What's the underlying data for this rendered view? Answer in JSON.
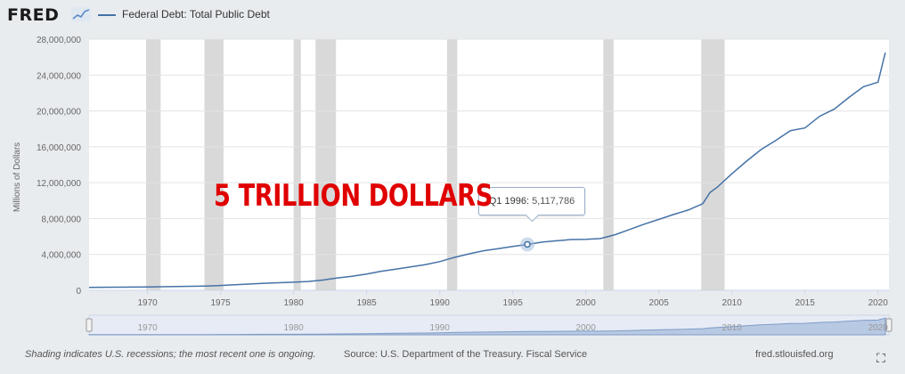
{
  "header": {
    "logo": "FRED",
    "series_title": "Federal Debt: Total Public Debt"
  },
  "annotation": "5 TRILLION DOLLARS",
  "tooltip": {
    "label": "Q1 1996:",
    "value": "5,117,786"
  },
  "footer": {
    "note": "Shading indicates U.S. recessions; the most recent one is ongoing.",
    "source": "Source: U.S. Department of the Treasury. Fiscal Service",
    "url": "fred.stlouisfed.org",
    "expand_icon": "expand-icon"
  },
  "colors": {
    "line": "#4572a7",
    "recession": "#d9d9d9",
    "background": "#ffffff",
    "annotation": "#e00000"
  },
  "chart_data": {
    "type": "line",
    "title": "",
    "xlabel": "",
    "ylabel": "Millions of Dollars",
    "xlim": [
      1966,
      2020.75
    ],
    "ylim": [
      0,
      28000000
    ],
    "x_ticks": [
      "1970",
      "1975",
      "1980",
      "1985",
      "1990",
      "1995",
      "2000",
      "2005",
      "2010",
      "2015",
      "2020"
    ],
    "y_ticks": [
      "0",
      "4,000,000",
      "8,000,000",
      "12,000,000",
      "16,000,000",
      "20,000,000",
      "24,000,000",
      "28,000,000"
    ],
    "navigator_ticks": [
      "1970",
      "1980",
      "1990",
      "2000",
      "2010",
      "2020"
    ],
    "recessions": [
      [
        1969.9,
        1970.9
      ],
      [
        1973.9,
        1975.2
      ],
      [
        1980.0,
        1980.5
      ],
      [
        1981.5,
        1982.9
      ],
      [
        1990.5,
        1991.2
      ],
      [
        2001.2,
        2001.9
      ],
      [
        2007.9,
        2009.5
      ]
    ],
    "highlight_point": {
      "x": 1996.0,
      "y": 5117786
    },
    "series": [
      {
        "name": "Federal Debt: Total Public Debt",
        "points": [
          [
            1966,
            320000
          ],
          [
            1968,
            350000
          ],
          [
            1970,
            380000
          ],
          [
            1972,
            430000
          ],
          [
            1974,
            480000
          ],
          [
            1975,
            540000
          ],
          [
            1976,
            620000
          ],
          [
            1978,
            780000
          ],
          [
            1980,
            900000
          ],
          [
            1981,
            980000
          ],
          [
            1982,
            1140000
          ],
          [
            1983,
            1380000
          ],
          [
            1984,
            1570000
          ],
          [
            1985,
            1820000
          ],
          [
            1986,
            2120000
          ],
          [
            1987,
            2350000
          ],
          [
            1988,
            2600000
          ],
          [
            1989,
            2860000
          ],
          [
            1990,
            3200000
          ],
          [
            1991,
            3660000
          ],
          [
            1992,
            4060000
          ],
          [
            1993,
            4410000
          ],
          [
            1994,
            4640000
          ],
          [
            1995,
            4900000
          ],
          [
            1996,
            5117786
          ],
          [
            1997,
            5370000
          ],
          [
            1998,
            5520000
          ],
          [
            1999,
            5660000
          ],
          [
            2000,
            5680000
          ],
          [
            2001,
            5770000
          ],
          [
            2002,
            6200000
          ],
          [
            2003,
            6780000
          ],
          [
            2004,
            7380000
          ],
          [
            2005,
            7900000
          ],
          [
            2006,
            8450000
          ],
          [
            2007,
            8950000
          ],
          [
            2008,
            9650000
          ],
          [
            2008.5,
            10900000
          ],
          [
            2009,
            11500000
          ],
          [
            2010,
            13000000
          ],
          [
            2011,
            14400000
          ],
          [
            2012,
            15700000
          ],
          [
            2013,
            16700000
          ],
          [
            2014,
            17800000
          ],
          [
            2015,
            18100000
          ],
          [
            2016,
            19400000
          ],
          [
            2017,
            20200000
          ],
          [
            2018,
            21500000
          ],
          [
            2019,
            22700000
          ],
          [
            2020,
            23200000
          ],
          [
            2020.5,
            26500000
          ]
        ]
      }
    ]
  }
}
